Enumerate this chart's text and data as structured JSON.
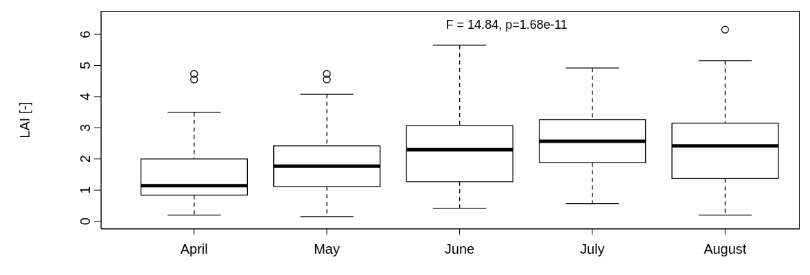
{
  "chart_data": {
    "type": "box",
    "ylabel": "LAI [-]",
    "categories": [
      "April",
      "May",
      "June",
      "July",
      "August"
    ],
    "boxes": [
      {
        "low": 0.2,
        "q1": 0.84,
        "median": 1.14,
        "q3": 2.0,
        "high": 3.5,
        "outliers": [
          4.55,
          4.73
        ]
      },
      {
        "low": 0.15,
        "q1": 1.11,
        "median": 1.77,
        "q3": 2.42,
        "high": 4.08,
        "outliers": [
          4.55,
          4.73
        ]
      },
      {
        "low": 0.42,
        "q1": 1.27,
        "median": 2.3,
        "q3": 3.07,
        "high": 5.65
      },
      {
        "low": 0.57,
        "q1": 1.88,
        "median": 2.57,
        "q3": 3.26,
        "high": 4.92
      },
      {
        "low": 0.2,
        "q1": 1.37,
        "median": 2.42,
        "q3": 3.15,
        "high": 5.15,
        "outliers": [
          6.15
        ]
      }
    ],
    "ylim": [
      -0.25,
      6.75
    ],
    "yticks": [
      0,
      1,
      2,
      3,
      4,
      5,
      6
    ],
    "color": "#000000",
    "annotations": [
      "F = 14.84, p=1.68e-11"
    ]
  }
}
